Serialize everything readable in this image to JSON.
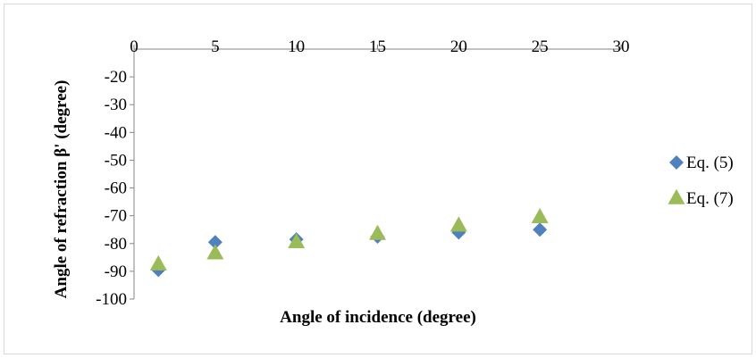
{
  "chart_data": {
    "type": "scatter",
    "title": "",
    "xlabel": "Angle of incidence (degree)",
    "ylabel": "Angle of refraction β' (degree)",
    "xlim": [
      0,
      30
    ],
    "ylim": [
      -100,
      -10
    ],
    "x_ticks": [
      0,
      5,
      10,
      15,
      20,
      25,
      30
    ],
    "y_ticks": [
      -20,
      -30,
      -40,
      -50,
      -60,
      -70,
      -80,
      -90,
      -100
    ],
    "x_axis_position": "top",
    "grid": false,
    "legend_position": "right",
    "series": [
      {
        "name": "Eq. (5)",
        "marker": "diamond",
        "color": "#4F81BD",
        "x": [
          1.5,
          5,
          10,
          15,
          20,
          25
        ],
        "y": [
          -89.5,
          -79.5,
          -78.5,
          -77.5,
          -76,
          -75
        ]
      },
      {
        "name": "Eq. (7)",
        "marker": "triangle",
        "color": "#9BBB59",
        "x": [
          1.5,
          5,
          10,
          15,
          20,
          25
        ],
        "y": [
          -87.5,
          -83.5,
          -79.5,
          -76.5,
          -73.5,
          -70.5
        ]
      }
    ]
  }
}
